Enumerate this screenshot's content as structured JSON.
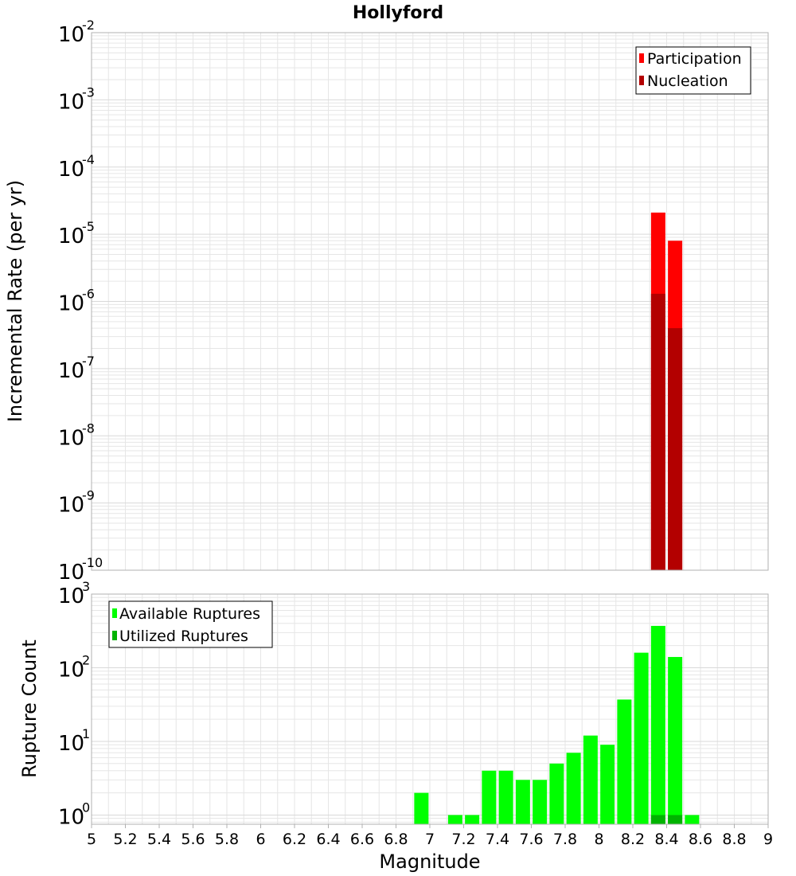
{
  "title": "Hollyford",
  "chart_data": [
    {
      "type": "bar",
      "title": "Hollyford",
      "xlabel": "Magnitude",
      "ylabel": "Incremental Rate (per yr)",
      "yscale": "log",
      "ylim": [
        1e-10,
        0.01
      ],
      "xlim": [
        5,
        9
      ],
      "grid": true,
      "legend_position": "top-right",
      "x": [
        8.35,
        8.45
      ],
      "series": [
        {
          "name": "Participation",
          "color": "#ff0000",
          "values": [
            2.1e-05,
            8e-06
          ]
        },
        {
          "name": "Nucleation",
          "color": "#b30000",
          "values": [
            1.3e-06,
            4e-07
          ]
        }
      ]
    },
    {
      "type": "bar",
      "ylabel": "Rupture Count",
      "xlabel": "Magnitude",
      "yscale": "log",
      "ylim": [
        0.75,
        1000
      ],
      "xlim": [
        5,
        9
      ],
      "grid": true,
      "legend_position": "top-left",
      "x": [
        6.95,
        7.15,
        7.25,
        7.35,
        7.45,
        7.55,
        7.65,
        7.75,
        7.85,
        7.95,
        8.05,
        8.15,
        8.25,
        8.35,
        8.45,
        8.55
      ],
      "series": [
        {
          "name": "Available Ruptures",
          "color": "#00ff00",
          "values": [
            2,
            1,
            1,
            4,
            4,
            3,
            3,
            5,
            7,
            12,
            9,
            37,
            160,
            370,
            140,
            1
          ]
        },
        {
          "name": "Utilized Ruptures",
          "color": "#00b300",
          "values": [
            null,
            null,
            null,
            null,
            null,
            null,
            null,
            null,
            null,
            null,
            null,
            null,
            null,
            1,
            1,
            null
          ]
        }
      ]
    }
  ],
  "x_ticks": [
    "5",
    "5.2",
    "5.4",
    "5.6",
    "5.8",
    "6",
    "6.2",
    "6.4",
    "6.6",
    "6.8",
    "7",
    "7.2",
    "7.4",
    "7.6",
    "7.8",
    "8",
    "8.2",
    "8.4",
    "8.6",
    "8.8",
    "9"
  ],
  "top_y_ticks": [
    {
      "base": "10",
      "exp": "-2"
    },
    {
      "base": "10",
      "exp": "-3"
    },
    {
      "base": "10",
      "exp": "-4"
    },
    {
      "base": "10",
      "exp": "-5"
    },
    {
      "base": "10",
      "exp": "-6"
    },
    {
      "base": "10",
      "exp": "-7"
    },
    {
      "base": "10",
      "exp": "-8"
    },
    {
      "base": "10",
      "exp": "-9"
    },
    {
      "base": "10",
      "exp": "-10"
    }
  ],
  "bottom_y_ticks": [
    {
      "base": "10",
      "exp": "3"
    },
    {
      "base": "10",
      "exp": "2"
    },
    {
      "base": "10",
      "exp": "1"
    },
    {
      "base": "10",
      "exp": "0"
    }
  ],
  "colors": {
    "participation": "#ff0000",
    "nucleation": "#b30000",
    "available": "#00ff00",
    "utilized": "#00b300",
    "grid": "#e6e6e6",
    "frame": "#b0b0b0"
  }
}
